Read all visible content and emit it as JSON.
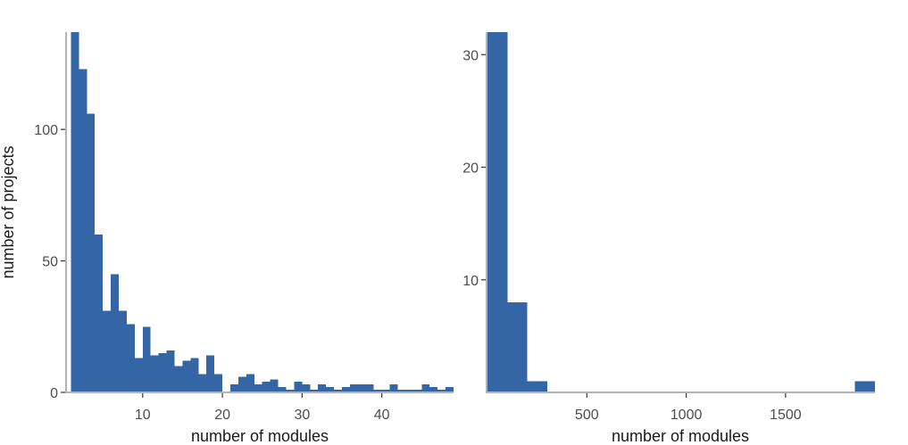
{
  "chart_data": [
    {
      "type": "bar",
      "subtype": "histogram",
      "xlabel": "number of modules",
      "ylabel": "number of projects",
      "xlim": [
        0.5,
        49
      ],
      "ylim": [
        0,
        137
      ],
      "xticks": [
        10,
        20,
        30,
        40
      ],
      "yticks": [
        0,
        50,
        100
      ],
      "bar_color": "#3465a4",
      "bin_width": 1,
      "bins_start": [
        1,
        2,
        3,
        4,
        5,
        6,
        7,
        8,
        9,
        10,
        11,
        12,
        13,
        14,
        15,
        16,
        17,
        18,
        19,
        20,
        21,
        22,
        23,
        24,
        25,
        26,
        27,
        28,
        29,
        30,
        31,
        32,
        33,
        34,
        35,
        36,
        37,
        38,
        39,
        40,
        41,
        42,
        43,
        44,
        45,
        46,
        47,
        48
      ],
      "values": [
        137,
        123,
        106,
        60,
        31,
        45,
        31,
        26,
        13,
        25,
        14,
        15,
        16,
        10,
        12,
        13,
        7,
        14,
        7,
        0,
        3,
        6,
        7,
        3,
        4,
        5,
        2,
        1,
        4,
        3,
        1,
        3,
        2,
        1,
        2,
        3,
        3,
        3,
        1,
        1,
        3,
        1,
        1,
        1,
        3,
        2,
        1,
        2
      ],
      "grid": false
    },
    {
      "type": "bar",
      "subtype": "histogram",
      "xlabel": "number of modules",
      "ylabel": "",
      "xlim": [
        0,
        1950
      ],
      "ylim": [
        0,
        32
      ],
      "xticks": [
        500,
        1000,
        1500
      ],
      "yticks": [
        10,
        20,
        30
      ],
      "bar_color": "#3465a4",
      "bin_width": 100,
      "bins_start": [
        0,
        100,
        200
      ],
      "values": [
        32,
        8,
        1
      ],
      "extra_bins": [
        {
          "start": 1850,
          "value": 1
        }
      ],
      "grid": false
    }
  ]
}
